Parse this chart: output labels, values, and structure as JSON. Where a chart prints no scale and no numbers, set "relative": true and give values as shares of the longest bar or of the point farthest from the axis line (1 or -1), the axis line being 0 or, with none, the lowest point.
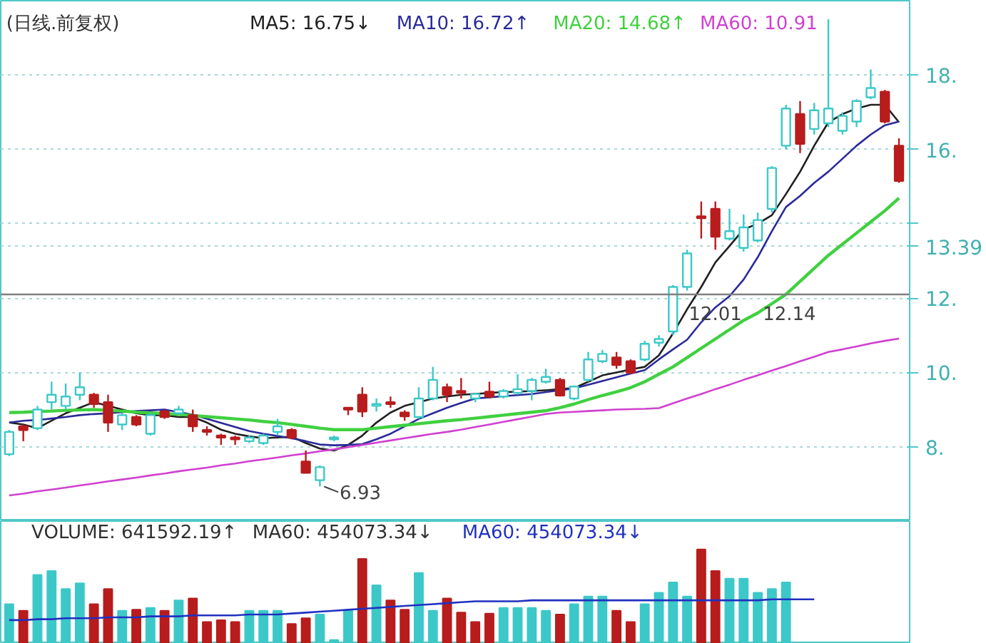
{
  "chart_data": [
    {
      "type": "candlestick",
      "title": "(日线.前复权)",
      "categories": [
        null,
        null,
        null,
        null,
        null,
        null,
        null,
        null,
        null,
        null,
        null,
        null,
        null,
        null,
        null,
        null,
        null,
        null,
        null,
        null,
        null,
        null,
        null,
        null,
        null,
        null,
        null,
        null,
        null,
        null,
        null,
        null,
        null,
        null,
        null,
        null,
        null,
        null,
        null,
        null,
        null,
        null,
        null,
        null,
        null,
        null,
        null,
        null,
        null,
        null,
        null,
        null,
        null,
        null,
        null,
        null,
        null,
        null,
        null,
        null,
        null,
        null,
        null,
        null
      ],
      "ohlc": [
        [
          7.8,
          8.45,
          7.75,
          8.4
        ],
        [
          8.55,
          8.6,
          8.15,
          8.45
        ],
        [
          8.5,
          9.1,
          8.45,
          9.0
        ],
        [
          9.2,
          9.75,
          9.0,
          9.4
        ],
        [
          9.1,
          9.7,
          9.0,
          9.35
        ],
        [
          9.4,
          10.0,
          9.25,
          9.6
        ],
        [
          9.4,
          9.45,
          9.05,
          9.15
        ],
        [
          9.2,
          9.4,
          8.4,
          8.65
        ],
        [
          8.6,
          8.9,
          8.45,
          8.85
        ],
        [
          8.8,
          8.85,
          8.55,
          8.6
        ],
        [
          8.35,
          8.9,
          8.3,
          8.85
        ],
        [
          8.95,
          9.0,
          8.75,
          8.8
        ],
        [
          8.9,
          9.1,
          8.85,
          9.0
        ],
        [
          8.85,
          9.0,
          8.4,
          8.55
        ],
        [
          8.45,
          8.55,
          8.3,
          8.4
        ],
        [
          8.3,
          8.35,
          8.05,
          8.25
        ],
        [
          8.25,
          8.3,
          8.05,
          8.2
        ],
        [
          8.15,
          8.3,
          8.1,
          8.25
        ],
        [
          8.1,
          8.35,
          8.05,
          8.3
        ],
        [
          8.4,
          8.75,
          8.3,
          8.55
        ],
        [
          8.45,
          8.5,
          8.2,
          8.25
        ],
        [
          7.6,
          7.9,
          7.3,
          7.3
        ],
        [
          7.1,
          7.5,
          6.93,
          7.45
        ],
        [
          8.2,
          8.3,
          8.15,
          8.25
        ],
        [
          9.05,
          9.05,
          8.85,
          9.0
        ],
        [
          9.4,
          9.6,
          8.8,
          8.95
        ],
        [
          9.1,
          9.3,
          8.95,
          9.15
        ],
        [
          9.2,
          9.35,
          9.05,
          9.15
        ],
        [
          8.92,
          8.98,
          8.7,
          8.82
        ],
        [
          8.8,
          9.6,
          8.75,
          9.3
        ],
        [
          9.3,
          10.15,
          9.25,
          9.8
        ],
        [
          9.6,
          9.7,
          9.2,
          9.4
        ],
        [
          9.5,
          9.85,
          9.3,
          9.45
        ],
        [
          9.3,
          9.45,
          9.2,
          9.42
        ],
        [
          9.48,
          9.75,
          9.3,
          9.35
        ],
        [
          9.35,
          9.55,
          9.3,
          9.5
        ],
        [
          9.45,
          9.95,
          9.4,
          9.55
        ],
        [
          9.5,
          9.85,
          9.25,
          9.8
        ],
        [
          9.75,
          10.1,
          9.7,
          9.88
        ],
        [
          9.8,
          9.85,
          9.35,
          9.38
        ],
        [
          9.3,
          9.65,
          9.25,
          9.62
        ],
        [
          9.8,
          10.55,
          9.75,
          10.35
        ],
        [
          10.3,
          10.6,
          10.25,
          10.5
        ],
        [
          10.4,
          10.55,
          10.1,
          10.2
        ],
        [
          10.3,
          10.35,
          9.95,
          10.0
        ],
        [
          10.35,
          10.85,
          10.3,
          10.77
        ],
        [
          10.8,
          11.0,
          10.7,
          10.9
        ],
        [
          11.1,
          12.35,
          11.0,
          12.3
        ],
        [
          12.3,
          13.3,
          12.2,
          13.2
        ],
        [
          14.2,
          14.6,
          13.6,
          14.15
        ],
        [
          14.4,
          14.6,
          13.3,
          13.65
        ],
        [
          13.6,
          14.4,
          13.55,
          13.8
        ],
        [
          13.35,
          14.25,
          13.25,
          13.9
        ],
        [
          13.55,
          14.3,
          13.5,
          14.1
        ],
        [
          14.4,
          15.55,
          14.3,
          15.5
        ],
        [
          16.1,
          17.2,
          16.0,
          17.1
        ],
        [
          16.95,
          17.3,
          15.9,
          16.15
        ],
        [
          16.55,
          17.25,
          16.4,
          17.05
        ],
        [
          16.7,
          19.5,
          16.6,
          17.1
        ],
        [
          16.5,
          17.0,
          16.4,
          16.9
        ],
        [
          16.75,
          17.35,
          16.6,
          17.3
        ],
        [
          17.4,
          18.15,
          17.35,
          17.65
        ],
        [
          17.55,
          17.6,
          16.7,
          16.75
        ],
        [
          16.1,
          16.3,
          15.1,
          15.15
        ]
      ],
      "colors": [
        "#3cc8c8",
        "#b81c1c",
        "#3cc8c8",
        "#3cc8c8",
        "#3cc8c8",
        "#3cc8c8",
        "#b81c1c",
        "#b81c1c",
        "#3cc8c8",
        "#b81c1c",
        "#3cc8c8",
        "#b81c1c",
        "#3cc8c8",
        "#b81c1c",
        "#b81c1c",
        "#b81c1c",
        "#b81c1c",
        "#3cc8c8",
        "#3cc8c8",
        "#3cc8c8",
        "#b81c1c",
        "#b81c1c",
        "#3cc8c8",
        "#3cc8c8",
        "#b81c1c",
        "#b81c1c",
        "#3cc8c8",
        "#b81c1c",
        "#b81c1c",
        "#3cc8c8",
        "#3cc8c8",
        "#b81c1c",
        "#b81c1c",
        "#3cc8c8",
        "#b81c1c",
        "#3cc8c8",
        "#3cc8c8",
        "#3cc8c8",
        "#3cc8c8",
        "#b81c1c",
        "#3cc8c8",
        "#3cc8c8",
        "#3cc8c8",
        "#b81c1c",
        "#b81c1c",
        "#3cc8c8",
        "#3cc8c8",
        "#3cc8c8",
        "#3cc8c8",
        "#b81c1c",
        "#b81c1c",
        "#3cc8c8",
        "#3cc8c8",
        "#3cc8c8",
        "#3cc8c8",
        "#3cc8c8",
        "#b81c1c",
        "#3cc8c8",
        "#3cc8c8",
        "#3cc8c8",
        "#3cc8c8",
        "#3cc8c8",
        "#b81c1c",
        "#b81c1c"
      ],
      "series": [
        {
          "type": "line",
          "name": "MA5: 16.75↓",
          "color": "#202020",
          "values": [
            8.65,
            8.6,
            8.5,
            8.7,
            8.9,
            9.05,
            9.2,
            9.1,
            9.0,
            8.9,
            8.85,
            8.85,
            8.8,
            8.8,
            8.65,
            8.46,
            8.35,
            8.28,
            8.23,
            8.25,
            8.27,
            8.1,
            7.95,
            7.9,
            8.05,
            8.3,
            8.65,
            8.92,
            9.1,
            9.2,
            9.3,
            9.35,
            9.4,
            9.42,
            9.45,
            9.47,
            9.48,
            9.5,
            9.52,
            9.55,
            9.58,
            9.75,
            9.92,
            10.0,
            10.08,
            10.15,
            10.46,
            11.05,
            11.7,
            12.3,
            12.96,
            13.4,
            13.85,
            14.0,
            14.23,
            14.8,
            15.4,
            16.1,
            16.73,
            16.95,
            17.1,
            17.2,
            17.2,
            16.73
          ]
        },
        {
          "type": "line",
          "name": "MA10: 16.72↑",
          "color": "#2a2a9a",
          "values": [
            8.65,
            8.7,
            8.72,
            8.76,
            8.8,
            8.85,
            8.88,
            8.9,
            8.93,
            8.96,
            8.98,
            9.0,
            8.93,
            8.86,
            8.75,
            8.64,
            8.53,
            8.42,
            8.35,
            8.29,
            8.23,
            8.15,
            8.06,
            8.04,
            8.05,
            8.07,
            8.2,
            8.35,
            8.55,
            8.75,
            8.9,
            9.05,
            9.18,
            9.3,
            9.33,
            9.36,
            9.39,
            9.42,
            9.47,
            9.52,
            9.57,
            9.67,
            9.77,
            9.87,
            9.97,
            10.06,
            10.35,
            10.62,
            10.88,
            11.35,
            11.75,
            12.05,
            12.5,
            13.1,
            13.8,
            14.45,
            14.75,
            15.1,
            15.4,
            15.75,
            16.1,
            16.4,
            16.65,
            16.75
          ]
        },
        {
          "type": "line",
          "name": "MA20: 14.68↑",
          "color": "#40d040",
          "values": [
            8.92,
            8.93,
            8.95,
            8.96,
            8.98,
            8.99,
            9.0,
            8.98,
            8.96,
            8.93,
            8.91,
            8.89,
            8.87,
            8.84,
            8.81,
            8.78,
            8.75,
            8.72,
            8.68,
            8.65,
            8.6,
            8.55,
            8.5,
            8.46,
            8.46,
            8.46,
            8.5,
            8.54,
            8.58,
            8.62,
            8.66,
            8.7,
            8.73,
            8.77,
            8.81,
            8.85,
            8.89,
            8.93,
            8.97,
            9.05,
            9.15,
            9.27,
            9.38,
            9.48,
            9.59,
            9.75,
            9.95,
            10.15,
            10.4,
            10.65,
            10.9,
            11.15,
            11.4,
            11.6,
            11.85,
            12.1,
            12.45,
            12.8,
            13.15,
            13.45,
            13.75,
            14.05,
            14.35,
            14.69
          ]
        },
        {
          "type": "line",
          "name": "MA60: 10.91",
          "color": "#d040d0",
          "values": [
            6.69,
            6.74,
            6.8,
            6.85,
            6.9,
            6.96,
            7.01,
            7.07,
            7.12,
            7.17,
            7.23,
            7.28,
            7.34,
            7.39,
            7.44,
            7.5,
            7.55,
            7.61,
            7.66,
            7.71,
            7.77,
            7.82,
            7.88,
            7.93,
            7.99,
            8.05,
            8.11,
            8.17,
            8.23,
            8.29,
            8.35,
            8.4,
            8.46,
            8.53,
            8.6,
            8.67,
            8.74,
            8.81,
            8.88,
            8.92,
            8.94,
            8.96,
            8.98,
            9.0,
            9.01,
            9.02,
            9.04,
            9.17,
            9.3,
            9.42,
            9.55,
            9.67,
            9.8,
            9.92,
            10.05,
            10.17,
            10.3,
            10.42,
            10.55,
            10.62,
            10.7,
            10.78,
            10.85,
            10.91
          ]
        }
      ],
      "ylim": [
        6.0,
        20.0
      ],
      "yticks": [
        {
          "value": 8,
          "label": "8."
        },
        {
          "value": 10,
          "label": "10."
        },
        {
          "value": 12,
          "label": "12."
        },
        {
          "value": 13.39,
          "label": "13.39"
        },
        {
          "value": 14,
          "label": null
        },
        {
          "value": 16,
          "label": "16."
        },
        {
          "value": 18,
          "label": "18."
        }
      ],
      "grid": "y",
      "tick_labels": "y",
      "ref_lines": [
        {
          "axis": "y",
          "value": 12.1,
          "color": "#808080"
        }
      ],
      "annotations": [
        "12.01",
        "12.14",
        "6.93"
      ]
    },
    {
      "type": "bar",
      "relative": true,
      "tick_labels": false,
      "categories": [
        null,
        null,
        null,
        null,
        null,
        null,
        null,
        null,
        null,
        null,
        null,
        null,
        null,
        null,
        null,
        null,
        null,
        null,
        null,
        null,
        null,
        null,
        null,
        null,
        null,
        null,
        null,
        null,
        null,
        null,
        null,
        null,
        null,
        null,
        null,
        null,
        null,
        null,
        null,
        null,
        null,
        null,
        null,
        null,
        null,
        null,
        null,
        null,
        null,
        null,
        null,
        null,
        null,
        null,
        null,
        null,
        null,
        null,
        null,
        null,
        null,
        null,
        null,
        null
      ],
      "series": [
        {
          "name": "VOLUME: 641592.19↑",
          "color": "#303030",
          "colors": [
            "#3cc8c8",
            "#b81c1c",
            "#3cc8c8",
            "#3cc8c8",
            "#3cc8c8",
            "#3cc8c8",
            "#b81c1c",
            "#b81c1c",
            "#3cc8c8",
            "#b81c1c",
            "#3cc8c8",
            "#b81c1c",
            "#3cc8c8",
            "#b81c1c",
            "#b81c1c",
            "#b81c1c",
            "#b81c1c",
            "#3cc8c8",
            "#3cc8c8",
            "#3cc8c8",
            "#b81c1c",
            "#b81c1c",
            "#3cc8c8",
            "#3cc8c8",
            "#3cc8c8",
            "#b81c1c",
            "#3cc8c8",
            "#b81c1c",
            "#b81c1c",
            "#3cc8c8",
            "#3cc8c8",
            "#b81c1c",
            "#b81c1c",
            "#b81c1c",
            "#b81c1c",
            "#3cc8c8",
            "#3cc8c8",
            "#3cc8c8",
            "#3cc8c8",
            "#b81c1c",
            "#3cc8c8",
            "#3cc8c8",
            "#3cc8c8",
            "#b81c1c",
            "#b81c1c",
            "#3cc8c8",
            "#3cc8c8",
            "#3cc8c8",
            "#3cc8c8",
            "#b81c1c",
            "#b81c1c",
            "#3cc8c8",
            "#3cc8c8",
            "#3cc8c8",
            "#3cc8c8",
            "#3cc8c8",
            "#3cc8c8",
            "#3cc8c8",
            "#3cc8c8",
            "#3cc8c8",
            "#3cc8c8",
            "#3cc8c8",
            "#3cc8c8",
            "#3cc8c8"
          ],
          "values": [
            0.42,
            0.35,
            0.73,
            0.77,
            0.58,
            0.64,
            0.42,
            0.58,
            0.35,
            0.36,
            0.38,
            0.35,
            0.46,
            0.48,
            0.23,
            0.25,
            0.23,
            0.35,
            0.35,
            0.35,
            0.21,
            0.27,
            0.31,
            0.04,
            0.35,
            0.9,
            0.62,
            0.46,
            0.36,
            0.75,
            0.35,
            0.48,
            0.33,
            0.23,
            0.32,
            0.38,
            0.38,
            0.38,
            0.35,
            0.31,
            0.42,
            0.5,
            0.5,
            0.35,
            0.23,
            0.42,
            0.54,
            0.65,
            0.5,
            1,
            0.77,
            0.69,
            0.69,
            0.54,
            0.58,
            0.65,
            null,
            null,
            null,
            null,
            null,
            null,
            null,
            null
          ]
        },
        {
          "type": "line",
          "name": "MA60: 454073.34↓",
          "color": "#2030c0",
          "values": [
            0.25,
            0.25,
            0.26,
            0.26,
            0.27,
            0.27,
            0.27,
            0.28,
            0.28,
            0.28,
            0.29,
            0.29,
            0.29,
            0.3,
            0.3,
            0.3,
            0.3,
            0.31,
            0.31,
            0.31,
            0.32,
            0.33,
            0.34,
            0.35,
            0.36,
            0.37,
            0.38,
            0.39,
            0.4,
            0.41,
            0.42,
            0.43,
            0.44,
            0.45,
            0.45,
            0.45,
            0.45,
            0.46,
            0.46,
            0.46,
            0.46,
            0.46,
            0.46,
            0.46,
            0.46,
            0.46,
            0.46,
            0.46,
            0.46,
            0.46,
            0.46,
            0.46,
            0.46,
            0.46,
            0.47,
            0.47,
            0.47,
            0.47,
            null,
            null,
            null,
            null,
            null,
            null
          ]
        }
      ],
      "annotations": [
        "MA60: 454073.34↓"
      ]
    }
  ]
}
